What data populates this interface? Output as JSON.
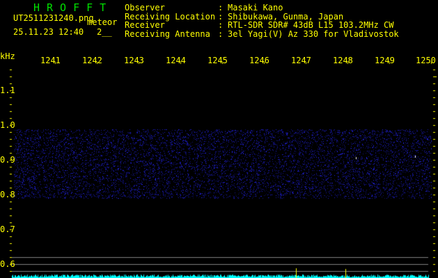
{
  "app_title": "HROFFT",
  "file": {
    "name": "UT2511231240.png",
    "datetime": "25.11.23 12:40",
    "mode": "meteor",
    "mode_sub": "2__"
  },
  "info": {
    "labels": [
      "Observer",
      "Receiving Location",
      "Receiver",
      "Receiving Antenna"
    ],
    "values": [
      "Masaki Kano",
      "Shibukawa, Gunma, Japan",
      "RTL-SDR SDR# 43dB L15 103.2MHz CW",
      "3el Yagi(V) Az 330 for Vladivostok"
    ]
  },
  "y_axis": {
    "unit": "kHz",
    "ticks": [
      "1.1",
      "1.0",
      "0.9",
      "0.8",
      "0.7",
      "0.6"
    ]
  },
  "x_axis": {
    "labels": [
      "1241",
      "1242",
      "1243",
      "1244",
      "1245",
      "1246",
      "1247",
      "1248",
      "1249",
      "1250"
    ]
  },
  "colors": {
    "text": "#ffff00",
    "title": "#00e000",
    "noise": "#2020ff",
    "spectrum": "#00ffff",
    "grid": "#808080"
  }
}
